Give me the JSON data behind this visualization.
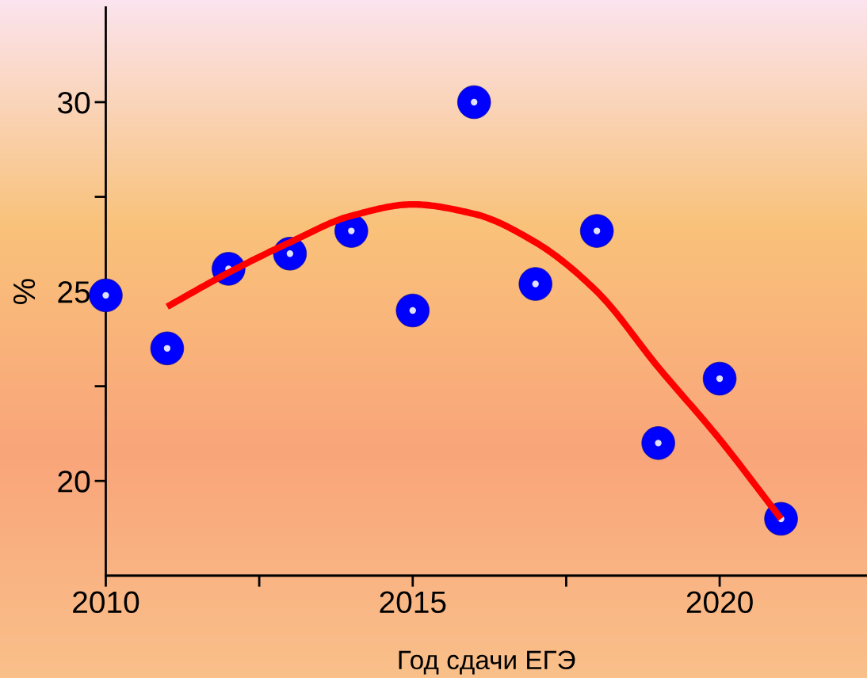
{
  "chart_data": {
    "type": "scatter",
    "xlabel": "Год сдачи ЕГЭ",
    "ylabel": "%",
    "xlim": [
      2010,
      2022.4
    ],
    "ylim": [
      17.5,
      32.5
    ],
    "xticks": [
      2010,
      {
        "value": 2012.5,
        "label": null
      },
      2015,
      {
        "value": 2017.5,
        "label": null
      },
      2020
    ],
    "yticks": [
      20,
      {
        "value": 22.5,
        "label": null
      },
      25,
      {
        "value": 27.5,
        "label": null
      },
      30
    ],
    "grid": false,
    "legend": false,
    "series": [
      {
        "color": "#0000ff",
        "marker": "circle",
        "x": [
          2010,
          2011,
          2012,
          2013,
          2014,
          2015,
          2016,
          2017,
          2018,
          2019,
          2020,
          2021
        ],
        "values": [
          24.9,
          23.5,
          25.6,
          26.0,
          26.6,
          24.5,
          30.0,
          25.2,
          26.6,
          21.0,
          22.7,
          19.0
        ]
      },
      {
        "type": "line",
        "color": "#ff0000",
        "marker": "none",
        "line_style": "solid",
        "x": [
          2011,
          2012,
          2013,
          2014,
          2015,
          2016,
          2017,
          2018,
          2019,
          2020,
          2021
        ],
        "values": [
          24.6,
          25.5,
          26.3,
          27.0,
          27.3,
          27.05,
          26.3,
          25.0,
          23.0,
          21.1,
          19.0
        ]
      }
    ]
  }
}
